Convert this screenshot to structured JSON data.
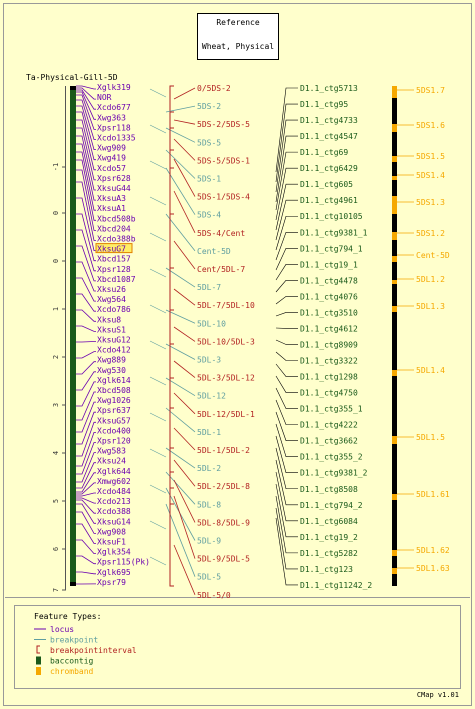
{
  "reference": {
    "title": "Reference",
    "subtitle": "Wheat, Physical"
  },
  "map_title": "Ta-Physical-Gill-5D",
  "axis_ticks": [
    "-1",
    "0",
    "0",
    "1",
    "2",
    "3",
    "4",
    "5",
    "6",
    "7"
  ],
  "loci": [
    "Xglk319",
    "NOR",
    "Xcdo677",
    "Xwg363",
    "Xpsr118",
    "Xcdo1335",
    "Xwg909",
    "Xwg419",
    "Xcdo57",
    "Xpsr628",
    "XksuG44",
    "XksuA3",
    "XksuA1",
    "Xbcd508b",
    "Xbcd204",
    "Xcdo388b",
    "XksuG7",
    "Xbcd157",
    "Xpsr128",
    "Xbcd1087",
    "Xksu26",
    "Xwg564",
    "Xcdo786",
    "Xksu8",
    "XksuS1",
    "XksuG12",
    "Xcdo412",
    "Xwg889",
    "Xwg530",
    "Xglk614",
    "Xbcd508",
    "Xwg1026",
    "Xpsr637",
    "XksuG57",
    "Xcdo400",
    "Xpsr120",
    "Xwg583",
    "Xksu24",
    "Xglk644",
    "Xmwg602",
    "Xcdo484",
    "Xcdo213",
    "Xcdo388",
    "XksuG14",
    "Xwg908",
    "XksuF1",
    "Xglk354",
    "Xpsr115(Pk)",
    "Xglk695",
    "Xpsr79"
  ],
  "highlight_locus": "XksuG7",
  "intervals": [
    "0/5DS-2",
    "5DS-2/5DS-5",
    "5DS-5/5DS-1",
    "5DS-1/5DS-4",
    "5DS-4/Cent",
    "Cent/5DL-7",
    "5DL-7/5DL-10",
    "5DL-10/5DL-3",
    "5DL-3/5DL-12",
    "5DL-12/5DL-1",
    "5DL-1/5DL-2",
    "5DL-2/5DL-8",
    "5DL-8/5DL-9",
    "5DL-9/5DL-5",
    "5DL-5/0"
  ],
  "breakpoints": [
    "5DS-2",
    "5DS-5",
    "5DS-1",
    "5DS-4",
    "Cent-5D",
    "5DL-7",
    "5DL-10",
    "5DL-3",
    "5DL-12",
    "5DL-1",
    "5DL-2",
    "5DL-8",
    "5DL-9",
    "5DL-5"
  ],
  "contigs": [
    "D1.1_ctg5713",
    "D1.1_ctg95",
    "D1.1_ctg4733",
    "D1.1_ctg4547",
    "D1.1_ctg69",
    "D1.1_ctg6429",
    "D1.1_ctg605",
    "D1.1_ctg4961",
    "D1.1_ctg10105",
    "D1.1_ctg9381_1",
    "D1.1_ctg794_1",
    "D1.1_ctg19_1",
    "D1.1_ctg4478",
    "D1.1_ctg4076",
    "D1.1_ctg3510",
    "D1.1_ctg4612",
    "D1.1_ctg8909",
    "D1.1_ctg3322",
    "D1.1_ctg1298",
    "D1.1_ctg4750",
    "D1.1_ctg355_1",
    "D1.1_ctg4222",
    "D1.1_ctg3662",
    "D1.1_ctg355_2",
    "D1.1_ctg9381_2",
    "D1.1_ctg8508",
    "D1.1_ctg794_2",
    "D1.1_ctg6084",
    "D1.1_ctg19_2",
    "D1.1_ctg5282",
    "D1.1_ctg123",
    "D1.1_ctg11242_2"
  ],
  "chrombands": [
    "5DS1.7",
    "5DS1.6",
    "5DS1.5",
    "5DS1.4",
    "5DS1.3",
    "5DS1.2",
    "Cent-5D",
    "5DL1.2",
    "5DL1.3",
    "5DL1.4",
    "5DL1.5",
    "5DL1.61",
    "5DL1.62",
    "5DL1.63"
  ],
  "legend": {
    "title": "Feature Types:",
    "items": [
      {
        "label": "locus",
        "kind": "line",
        "color": "#6b00b0"
      },
      {
        "label": "breakpoint",
        "kind": "line",
        "color": "#5f9ea0"
      },
      {
        "label": "breakpointinterval",
        "kind": "bracket",
        "color": "#b22222"
      },
      {
        "label": "baccontig",
        "kind": "box",
        "color": "#1a5a1a"
      },
      {
        "label": "chromband",
        "kind": "box",
        "color": "#f5a800"
      }
    ]
  },
  "footer": "CMap v1.01",
  "colors": {
    "bg": "#ffffcc",
    "border": "#999999",
    "locus": "#6b00b0",
    "breakpoint": "#5f9ea0",
    "interval": "#b22222",
    "contig": "#1a5a1a",
    "band": "#f5a800",
    "highlight_bg": "#ffee66",
    "highlight_border": "#e08000"
  }
}
